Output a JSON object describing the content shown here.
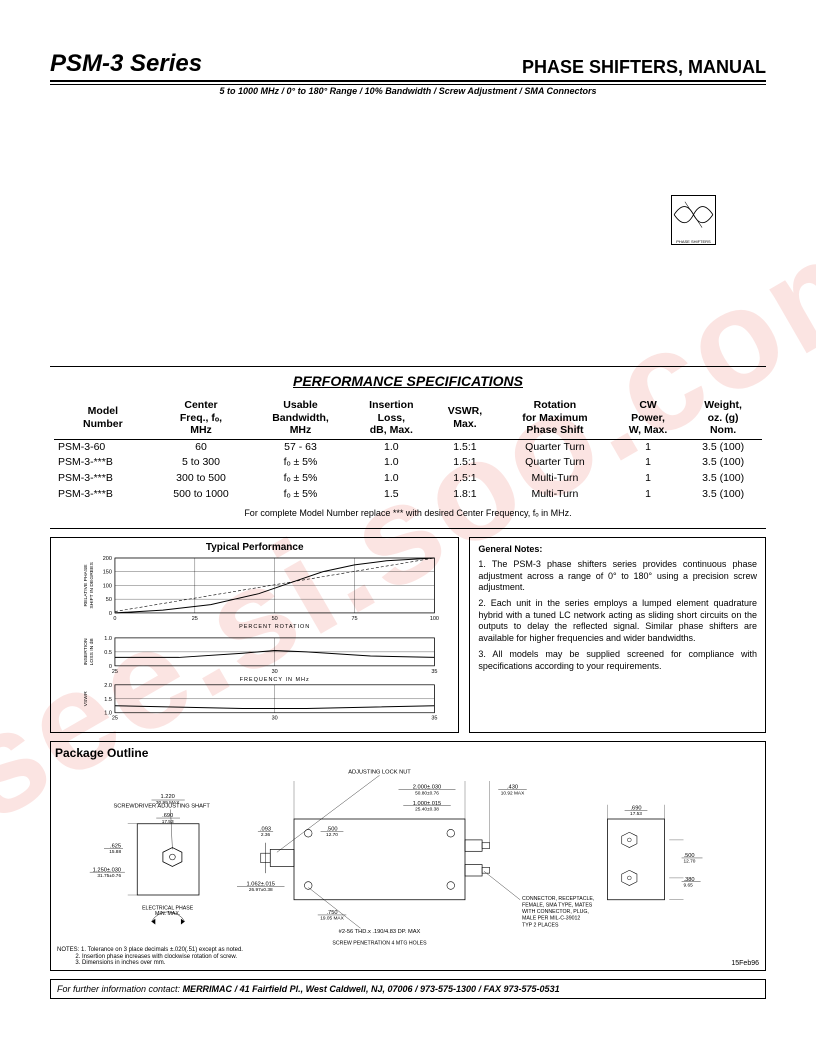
{
  "header": {
    "series": "PSM-3 Series",
    "title": "PHASE SHIFTERS, MANUAL",
    "subtitle": "5 to 1000 MHz / 0° to 180° Range / 10% Bandwidth / Screw Adjustment / SMA Connectors"
  },
  "logo": {
    "label": "PHASE SHIFTERS"
  },
  "spec": {
    "title": "PERFORMANCE SPECIFICATIONS",
    "columns": [
      "Model\nNumber",
      "Center\nFreq., fₒ,\nMHz",
      "Usable\nBandwidth,\nMHz",
      "Insertion\nLoss,\ndB, Max.",
      "VSWR,\nMax.",
      "Rotation\nfor Maximum\nPhase Shift",
      "CW\nPower,\nW, Max.",
      "Weight,\noz. (g)\nNom."
    ],
    "rows": [
      [
        "PSM-3-60",
        "60",
        "57 - 63",
        "1.0",
        "1.5:1",
        "Quarter Turn",
        "1",
        "3.5 (100)"
      ],
      [
        "PSM-3-***B",
        "5 to 300",
        "fₒ ± 5%",
        "1.0",
        "1.5:1",
        "Quarter Turn",
        "1",
        "3.5 (100)"
      ],
      [
        "PSM-3-***B",
        "300 to 500",
        "fₒ ± 5%",
        "1.0",
        "1.5:1",
        "Multi-Turn",
        "1",
        "3.5 (100)"
      ],
      [
        "PSM-3-***B",
        "500 to 1000",
        "fₒ ± 5%",
        "1.5",
        "1.8:1",
        "Multi-Turn",
        "1",
        "3.5 (100)"
      ]
    ],
    "note": "For complete Model Number replace *** with desired Center Frequency, fₒ in MHz."
  },
  "charts": {
    "title": "Typical Performance",
    "phase": {
      "ylabel": "RELATIVE PHASE\nSHIFT IN DEGREES",
      "xticks": [
        "0",
        "25",
        "50",
        "75",
        "100"
      ],
      "yticks": [
        "0",
        "50",
        "100",
        "150",
        "200"
      ],
      "xlabel": "PERCENT ROTATION",
      "background": "#ffffff",
      "grid": "#000000",
      "curve_points": [
        [
          0,
          0
        ],
        [
          15,
          10
        ],
        [
          30,
          30
        ],
        [
          45,
          70
        ],
        [
          55,
          110
        ],
        [
          65,
          150
        ],
        [
          75,
          175
        ],
        [
          85,
          190
        ],
        [
          100,
          200
        ]
      ],
      "dash_points": [
        [
          0,
          5
        ],
        [
          100,
          200
        ]
      ]
    },
    "loss": {
      "ylabel": "INSERTION\nLOSS IN dB",
      "xticks": [
        "25",
        "30",
        "35"
      ],
      "yticks": [
        "0",
        "0.5",
        "1.0"
      ],
      "xlabel": "FREQUENCY IN MHz",
      "curve_points": [
        [
          25,
          0.3
        ],
        [
          27,
          0.3
        ],
        [
          29,
          0.45
        ],
        [
          30,
          0.55
        ],
        [
          31,
          0.5
        ],
        [
          33,
          0.35
        ],
        [
          35,
          0.3
        ]
      ]
    },
    "vswr": {
      "ylabel": "VSWR",
      "xticks": [
        "25",
        "30",
        "35"
      ],
      "yticks": [
        "1.0",
        "1.5",
        "2.0"
      ],
      "xlabel": "FREQUENCY IN MHz",
      "curve_points": [
        [
          25,
          1.25
        ],
        [
          27,
          1.2
        ],
        [
          29,
          1.15
        ],
        [
          31,
          1.15
        ],
        [
          33,
          1.2
        ],
        [
          35,
          1.25
        ]
      ]
    }
  },
  "notes": {
    "title": "General Notes:",
    "items": [
      "1. The PSM-3 phase shifters series provides continuous phase adjustment across a range of 0° to 180° using a precision screw adjustment.",
      "2. Each unit in the series employs a lumped element quadrature hybrid with a tuned LC network acting as sliding short circuits on the outputs to delay the reflected signal. Similar phase shifters are available for higher frequencies and wider bandwidths.",
      "3. All models may be supplied screened for compliance with specifications according to your requirements."
    ]
  },
  "package": {
    "title": "Package Outline",
    "labels": {
      "lock_nut": "ADJUSTING LOCK NUT",
      "shaft": "SCREWDRIVER ADJUSTING SHAFT",
      "phase": "ELECTRICAL PHASE\nMIN.     MAX.",
      "connector": "CONNECTOR, RECEPTACLE,\nFEMALE, SMA TYPE, MATES\nWITH CONNECTOR, PLUG,\nMALE PER MIL-C-39012\nTYP  2 PLACES",
      "screw": "#2-56 THD.x .190/4.83 DP. MAX",
      "penetration": "SCREW PENETRATION 4 MTG HOLES"
    },
    "dims": {
      "d1": "1.220/30.99 MAX",
      "d2": ".690/17.53",
      "d3": ".625/15.88",
      "d4": "1.250±.030/31.75±0.76",
      "d5": ".093/2.36",
      "d6": "1.062±.015/26.97±0.38",
      "d7": ".750/19.05 MAX",
      "d8": "2.000±.030/50.80±0.76",
      "d9": "1.000±.015/25.40±0.38",
      "d10": ".500/12.70",
      "d11": ".430/10.92 MAX",
      "d12": ".690/17.53",
      "d13": ".500/12.70",
      "d14": ".380/9.65"
    },
    "notes_title": "NOTES:",
    "notes": [
      "1. Tolerance on 3 place decimals ±.020(.51) except as noted.",
      "2. Insertion phase increases with clockwise rotation of screw.",
      "3. Dimensions in inches over mm."
    ],
    "date": "15Feb96"
  },
  "footer": {
    "prefix": "For further information contact: ",
    "company": "MERRIMAC",
    "address": " / 41 Fairfield Pl., West Caldwell, NJ, 07006 / 973-575-1300 / FAX 973-575-0531"
  },
  "watermark": "isee.si.soo.com",
  "colors": {
    "accent": "#e74c3c",
    "text": "#000000",
    "bg": "#ffffff"
  }
}
